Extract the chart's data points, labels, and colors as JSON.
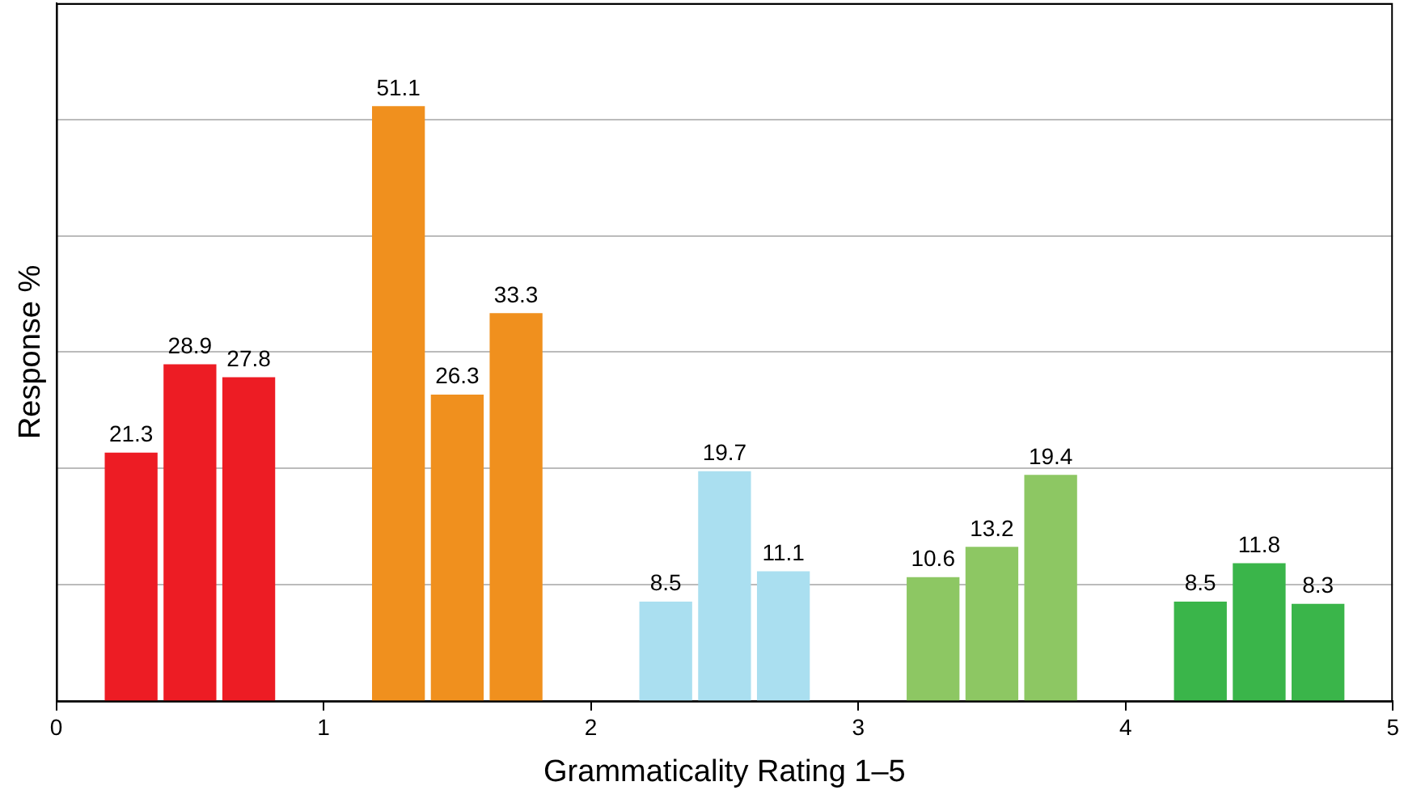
{
  "chart_data": {
    "type": "bar",
    "xlabel": "Grammaticality Rating 1–5",
    "ylabel": "Response %",
    "x": [
      0.28,
      0.5,
      0.72,
      1.28,
      1.5,
      1.72,
      2.28,
      2.5,
      2.72,
      3.28,
      3.5,
      3.72,
      4.28,
      4.5,
      4.72
    ],
    "values": [
      21.3,
      28.9,
      27.8,
      51.1,
      26.3,
      33.3,
      8.5,
      19.7,
      11.1,
      10.6,
      13.2,
      19.4,
      8.5,
      11.8,
      8.3
    ],
    "colors": [
      "#ed1c24",
      "#ed1c24",
      "#ed1c24",
      "#f0901e",
      "#f0901e",
      "#f0901e",
      "#aadff0",
      "#aadff0",
      "#aadff0",
      "#8dc763",
      "#8dc763",
      "#8dc763",
      "#3ab54a",
      "#3ab54a",
      "#3ab54a"
    ],
    "xlim": [
      0,
      5
    ],
    "xticks": [
      0,
      1,
      2,
      3,
      4,
      5
    ],
    "ylim": [
      0,
      60
    ],
    "yticks": [
      {
        "value": 0,
        "label": null
      },
      {
        "value": 10,
        "label": null
      },
      {
        "value": 20,
        "label": null
      },
      {
        "value": 30,
        "label": null
      },
      {
        "value": 40,
        "label": null
      },
      {
        "value": 50,
        "label": null
      },
      {
        "value": 60,
        "label": null
      }
    ],
    "grid": "y",
    "tick_labels": "x",
    "data_labels": true,
    "legend": false
  }
}
